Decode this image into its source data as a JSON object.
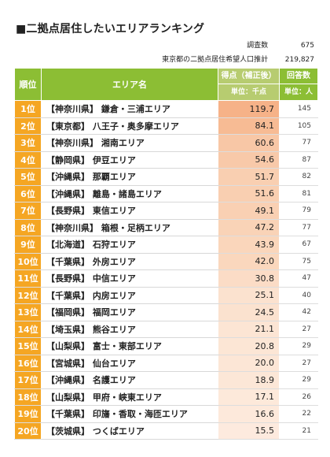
{
  "title": "■二拠点居住したいエリアランキング",
  "meta": [
    {
      "label": "調査数",
      "value": "675"
    },
    {
      "label": "東京都の二拠点居住希望人口推計",
      "value": "219,827"
    }
  ],
  "headers": {
    "rank": "順位",
    "area": "エリア名",
    "score_top": "得点（補正後）",
    "score_unit": "単位：千点",
    "answers_top": "回答数",
    "answers_unit": "単位：人"
  },
  "rows": [
    {
      "rank": "1位",
      "area": "【神奈川県】 鎌倉・三浦エリア",
      "score": "119.7",
      "answers": "145"
    },
    {
      "rank": "2位",
      "area": "【東京都】 八王子・奥多摩エリア",
      "score": "84.1",
      "answers": "105"
    },
    {
      "rank": "3位",
      "area": "【神奈川県】 湘南エリア",
      "score": "60.6",
      "answers": "77"
    },
    {
      "rank": "4位",
      "area": "【静岡県】 伊豆エリア",
      "score": "54.6",
      "answers": "87"
    },
    {
      "rank": "5位",
      "area": "【沖縄県】 那覇エリア",
      "score": "51.7",
      "answers": "82"
    },
    {
      "rank": "6位",
      "area": "【沖縄県】 離島・諸島エリア",
      "score": "51.6",
      "answers": "81"
    },
    {
      "rank": "7位",
      "area": "【長野県】 東信エリア",
      "score": "49.1",
      "answers": "79"
    },
    {
      "rank": "8位",
      "area": "【神奈川県】 箱根・足柄エリア",
      "score": "47.2",
      "answers": "77"
    },
    {
      "rank": "9位",
      "area": "【北海道】 石狩エリア",
      "score": "43.9",
      "answers": "67"
    },
    {
      "rank": "10位",
      "area": "【千葉県】 外房エリア",
      "score": "42.0",
      "answers": "75"
    },
    {
      "rank": "11位",
      "area": "【長野県】 中信エリア",
      "score": "30.8",
      "answers": "47"
    },
    {
      "rank": "12位",
      "area": "【千葉県】 内房エリア",
      "score": "25.1",
      "answers": "40"
    },
    {
      "rank": "13位",
      "area": "【福岡県】 福岡エリア",
      "score": "24.5",
      "answers": "42"
    },
    {
      "rank": "14位",
      "area": "【埼玉県】 熊谷エリア",
      "score": "21.1",
      "answers": "27"
    },
    {
      "rank": "15位",
      "area": "【山梨県】 富士・東部エリア",
      "score": "20.8",
      "answers": "29"
    },
    {
      "rank": "16位",
      "area": "【宮城県】 仙台エリア",
      "score": "20.0",
      "answers": "27"
    },
    {
      "rank": "17位",
      "area": "【沖縄県】 名護エリア",
      "score": "18.9",
      "answers": "29"
    },
    {
      "rank": "18位",
      "area": "【山梨県】 甲府・峡東エリア",
      "score": "17.1",
      "answers": "26"
    },
    {
      "rank": "19位",
      "area": "【千葉県】 印旛・香取・海匝エリア",
      "score": "16.6",
      "answers": "22"
    },
    {
      "rank": "20位",
      "area": "【茨城県】 つくばエリア",
      "score": "15.5",
      "answers": "21"
    }
  ]
}
